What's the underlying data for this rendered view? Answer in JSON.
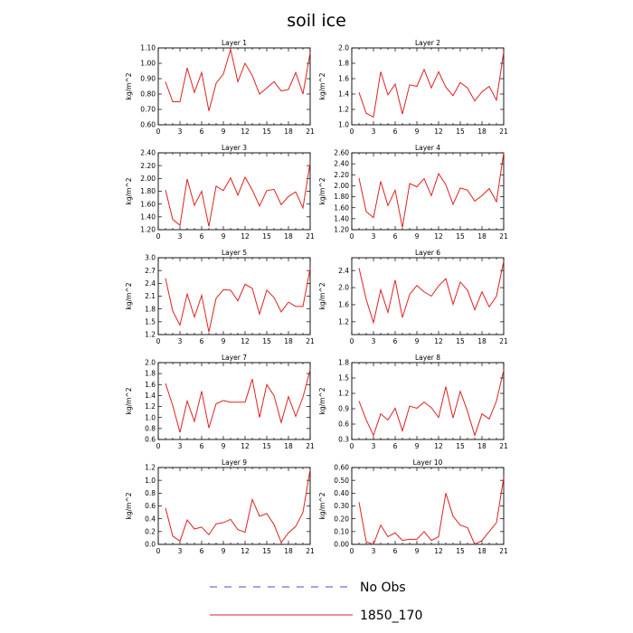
{
  "title": "soil ice",
  "legend": {
    "items": [
      {
        "label": "No Obs",
        "color": "#4a4ad0",
        "dash": true
      },
      {
        "label": "1850_170",
        "color": "#e02020",
        "dash": false
      }
    ]
  },
  "chart_data": [
    {
      "type": "line",
      "title": "Layer 1",
      "ylabel": "kg/m^2",
      "xlim": [
        0,
        21
      ],
      "xticks": [
        3,
        6,
        9,
        12,
        15,
        18,
        21
      ],
      "ylim": [
        0.6,
        1.1
      ],
      "yticks": [
        "0.60",
        "0.70",
        "0.80",
        "0.90",
        "1.00",
        "1.10"
      ],
      "series": [
        {
          "color": "#e02020",
          "x": [
            1,
            2,
            3,
            4,
            5,
            6,
            7,
            8,
            9,
            10,
            11,
            12,
            13,
            14,
            15,
            16,
            17,
            18,
            19,
            20,
            21
          ],
          "values": [
            0.88,
            0.75,
            0.75,
            0.97,
            0.81,
            0.94,
            0.69,
            0.87,
            0.93,
            1.09,
            0.88,
            1.0,
            0.92,
            0.8,
            0.84,
            0.88,
            0.82,
            0.83,
            0.94,
            0.8,
            1.07
          ]
        }
      ]
    },
    {
      "type": "line",
      "title": "Layer 2",
      "ylabel": "kg/m^2",
      "xlim": [
        0,
        21
      ],
      "xticks": [
        3,
        6,
        9,
        12,
        15,
        18,
        21
      ],
      "ylim": [
        1.0,
        2.0
      ],
      "yticks": [
        "1.0",
        "1.2",
        "1.4",
        "1.6",
        "1.8",
        "2.0"
      ],
      "series": [
        {
          "color": "#e02020",
          "x": [
            1,
            2,
            3,
            4,
            5,
            6,
            7,
            8,
            9,
            10,
            11,
            12,
            13,
            14,
            15,
            16,
            17,
            18,
            19,
            20,
            21
          ],
          "values": [
            1.42,
            1.15,
            1.1,
            1.69,
            1.39,
            1.53,
            1.14,
            1.52,
            1.5,
            1.72,
            1.48,
            1.69,
            1.49,
            1.38,
            1.55,
            1.48,
            1.31,
            1.43,
            1.5,
            1.32,
            1.95
          ]
        }
      ]
    },
    {
      "type": "line",
      "title": "Layer 3",
      "ylabel": "kg/m^2",
      "xlim": [
        0,
        21
      ],
      "xticks": [
        3,
        6,
        9,
        12,
        15,
        18,
        21
      ],
      "ylim": [
        1.2,
        2.4
      ],
      "yticks": [
        "1.20",
        "1.40",
        "1.60",
        "1.80",
        "2.00",
        "2.20",
        "2.40"
      ],
      "series": [
        {
          "color": "#e02020",
          "x": [
            1,
            2,
            3,
            4,
            5,
            6,
            7,
            8,
            9,
            10,
            11,
            12,
            13,
            14,
            15,
            16,
            17,
            18,
            19,
            20,
            21
          ],
          "values": [
            1.82,
            1.36,
            1.27,
            1.99,
            1.58,
            1.8,
            1.25,
            1.88,
            1.81,
            2.01,
            1.74,
            2.02,
            1.82,
            1.57,
            1.81,
            1.83,
            1.59,
            1.72,
            1.79,
            1.54,
            2.25
          ]
        }
      ]
    },
    {
      "type": "line",
      "title": "Layer 4",
      "ylabel": "kg/m^2",
      "xlim": [
        0,
        21
      ],
      "xticks": [
        3,
        6,
        9,
        12,
        15,
        18,
        21
      ],
      "ylim": [
        1.2,
        2.6
      ],
      "yticks": [
        "1.20",
        "1.40",
        "1.60",
        "1.80",
        "2.00",
        "2.20",
        "2.40",
        "2.60"
      ],
      "series": [
        {
          "color": "#e02020",
          "x": [
            1,
            2,
            3,
            4,
            5,
            6,
            7,
            8,
            9,
            10,
            11,
            12,
            13,
            14,
            15,
            16,
            17,
            18,
            19,
            20,
            21
          ],
          "values": [
            2.14,
            1.53,
            1.42,
            2.08,
            1.64,
            1.92,
            1.24,
            2.04,
            1.98,
            2.13,
            1.82,
            2.22,
            2.02,
            1.66,
            1.96,
            1.92,
            1.72,
            1.82,
            1.95,
            1.71,
            2.6
          ]
        }
      ]
    },
    {
      "type": "line",
      "title": "Layer 5",
      "ylabel": "kg/m^2",
      "xlim": [
        0,
        21
      ],
      "xticks": [
        3,
        6,
        9,
        12,
        15,
        18,
        21
      ],
      "ylim": [
        1.2,
        3.0
      ],
      "yticks": [
        "1.2",
        "1.5",
        "1.8",
        "2.1",
        "2.4",
        "2.7",
        "3.0"
      ],
      "series": [
        {
          "color": "#e02020",
          "x": [
            1,
            2,
            3,
            4,
            5,
            6,
            7,
            8,
            9,
            10,
            11,
            12,
            13,
            14,
            15,
            16,
            17,
            18,
            19,
            20,
            21
          ],
          "values": [
            2.52,
            1.75,
            1.42,
            2.15,
            1.61,
            2.12,
            1.26,
            2.05,
            2.25,
            2.24,
            1.99,
            2.38,
            2.28,
            1.68,
            2.24,
            2.07,
            1.73,
            1.96,
            1.86,
            1.86,
            2.75
          ]
        }
      ]
    },
    {
      "type": "line",
      "title": "Layer 6",
      "ylabel": "kg/m^2",
      "xlim": [
        0,
        21
      ],
      "xticks": [
        3,
        6,
        9,
        12,
        15,
        18,
        21
      ],
      "ylim": [
        0.9,
        2.7
      ],
      "yticks": [
        "1.2",
        "1.6",
        "2.0",
        "2.4"
      ],
      "series": [
        {
          "color": "#e02020",
          "x": [
            1,
            2,
            3,
            4,
            5,
            6,
            7,
            8,
            9,
            10,
            11,
            12,
            13,
            14,
            15,
            16,
            17,
            18,
            19,
            20,
            21
          ],
          "values": [
            2.46,
            1.72,
            1.18,
            1.95,
            1.42,
            2.18,
            1.3,
            1.84,
            2.05,
            1.9,
            1.8,
            2.04,
            2.21,
            1.61,
            2.13,
            1.94,
            1.48,
            1.9,
            1.55,
            1.8,
            2.62
          ]
        }
      ]
    },
    {
      "type": "line",
      "title": "Layer 7",
      "ylabel": "kg/m^2",
      "xlim": [
        0,
        21
      ],
      "xticks": [
        3,
        6,
        9,
        12,
        15,
        18,
        21
      ],
      "ylim": [
        0.6,
        2.0
      ],
      "yticks": [
        "0.6",
        "0.8",
        "1.0",
        "1.2",
        "1.4",
        "1.6",
        "1.8",
        "2.0"
      ],
      "series": [
        {
          "color": "#e02020",
          "x": [
            1,
            2,
            3,
            4,
            5,
            6,
            7,
            8,
            9,
            10,
            11,
            12,
            13,
            14,
            15,
            16,
            17,
            18,
            19,
            20,
            21
          ],
          "values": [
            1.62,
            1.22,
            0.73,
            1.3,
            0.93,
            1.48,
            0.81,
            1.25,
            1.31,
            1.28,
            1.28,
            1.28,
            1.7,
            1.0,
            1.6,
            1.4,
            0.91,
            1.38,
            1.02,
            1.37,
            1.87
          ]
        }
      ]
    },
    {
      "type": "line",
      "title": "Layer 8",
      "ylabel": "kg/m^2",
      "xlim": [
        0,
        21
      ],
      "xticks": [
        3,
        6,
        9,
        12,
        15,
        18,
        21
      ],
      "ylim": [
        0.3,
        1.8
      ],
      "yticks": [
        "0.3",
        "0.6",
        "0.9",
        "1.2",
        "1.5",
        "1.8"
      ],
      "series": [
        {
          "color": "#e02020",
          "x": [
            1,
            2,
            3,
            4,
            5,
            6,
            7,
            8,
            9,
            10,
            11,
            12,
            13,
            14,
            15,
            16,
            17,
            18,
            19,
            20,
            21
          ],
          "values": [
            1.05,
            0.68,
            0.38,
            0.8,
            0.68,
            0.91,
            0.47,
            0.95,
            0.91,
            1.03,
            0.92,
            0.73,
            1.33,
            0.72,
            1.24,
            0.85,
            0.38,
            0.8,
            0.7,
            1.05,
            1.65
          ]
        }
      ]
    },
    {
      "type": "line",
      "title": "Layer 9",
      "ylabel": "kg/m^2",
      "xlim": [
        0,
        21
      ],
      "xticks": [
        3,
        6,
        9,
        12,
        15,
        18,
        21
      ],
      "ylim": [
        0.0,
        1.2
      ],
      "yticks": [
        "0.0",
        "0.2",
        "0.4",
        "0.6",
        "0.8",
        "1.0",
        "1.2"
      ],
      "series": [
        {
          "color": "#e02020",
          "x": [
            1,
            2,
            3,
            4,
            5,
            6,
            7,
            8,
            9,
            10,
            11,
            12,
            13,
            14,
            15,
            16,
            17,
            18,
            19,
            20,
            21
          ],
          "values": [
            0.57,
            0.13,
            0.05,
            0.38,
            0.24,
            0.27,
            0.15,
            0.32,
            0.34,
            0.39,
            0.23,
            0.19,
            0.7,
            0.44,
            0.48,
            0.31,
            0.03,
            0.18,
            0.28,
            0.5,
            1.17
          ]
        }
      ]
    },
    {
      "type": "line",
      "title": "Layer 10",
      "ylabel": "kg/m^2",
      "xlim": [
        0,
        21
      ],
      "xticks": [
        3,
        6,
        9,
        12,
        15,
        18,
        21
      ],
      "ylim": [
        0.0,
        0.6
      ],
      "yticks": [
        "0.00",
        "0.10",
        "0.20",
        "0.30",
        "0.40",
        "0.50",
        "0.60"
      ],
      "series": [
        {
          "color": "#e02020",
          "x": [
            1,
            2,
            3,
            4,
            5,
            6,
            7,
            8,
            9,
            10,
            11,
            12,
            13,
            14,
            15,
            16,
            17,
            18,
            19,
            20,
            21
          ],
          "values": [
            0.33,
            0.02,
            0.0,
            0.15,
            0.06,
            0.09,
            0.03,
            0.04,
            0.04,
            0.1,
            0.03,
            0.06,
            0.4,
            0.22,
            0.15,
            0.13,
            0.0,
            0.03,
            0.1,
            0.17,
            0.52
          ]
        }
      ]
    }
  ]
}
